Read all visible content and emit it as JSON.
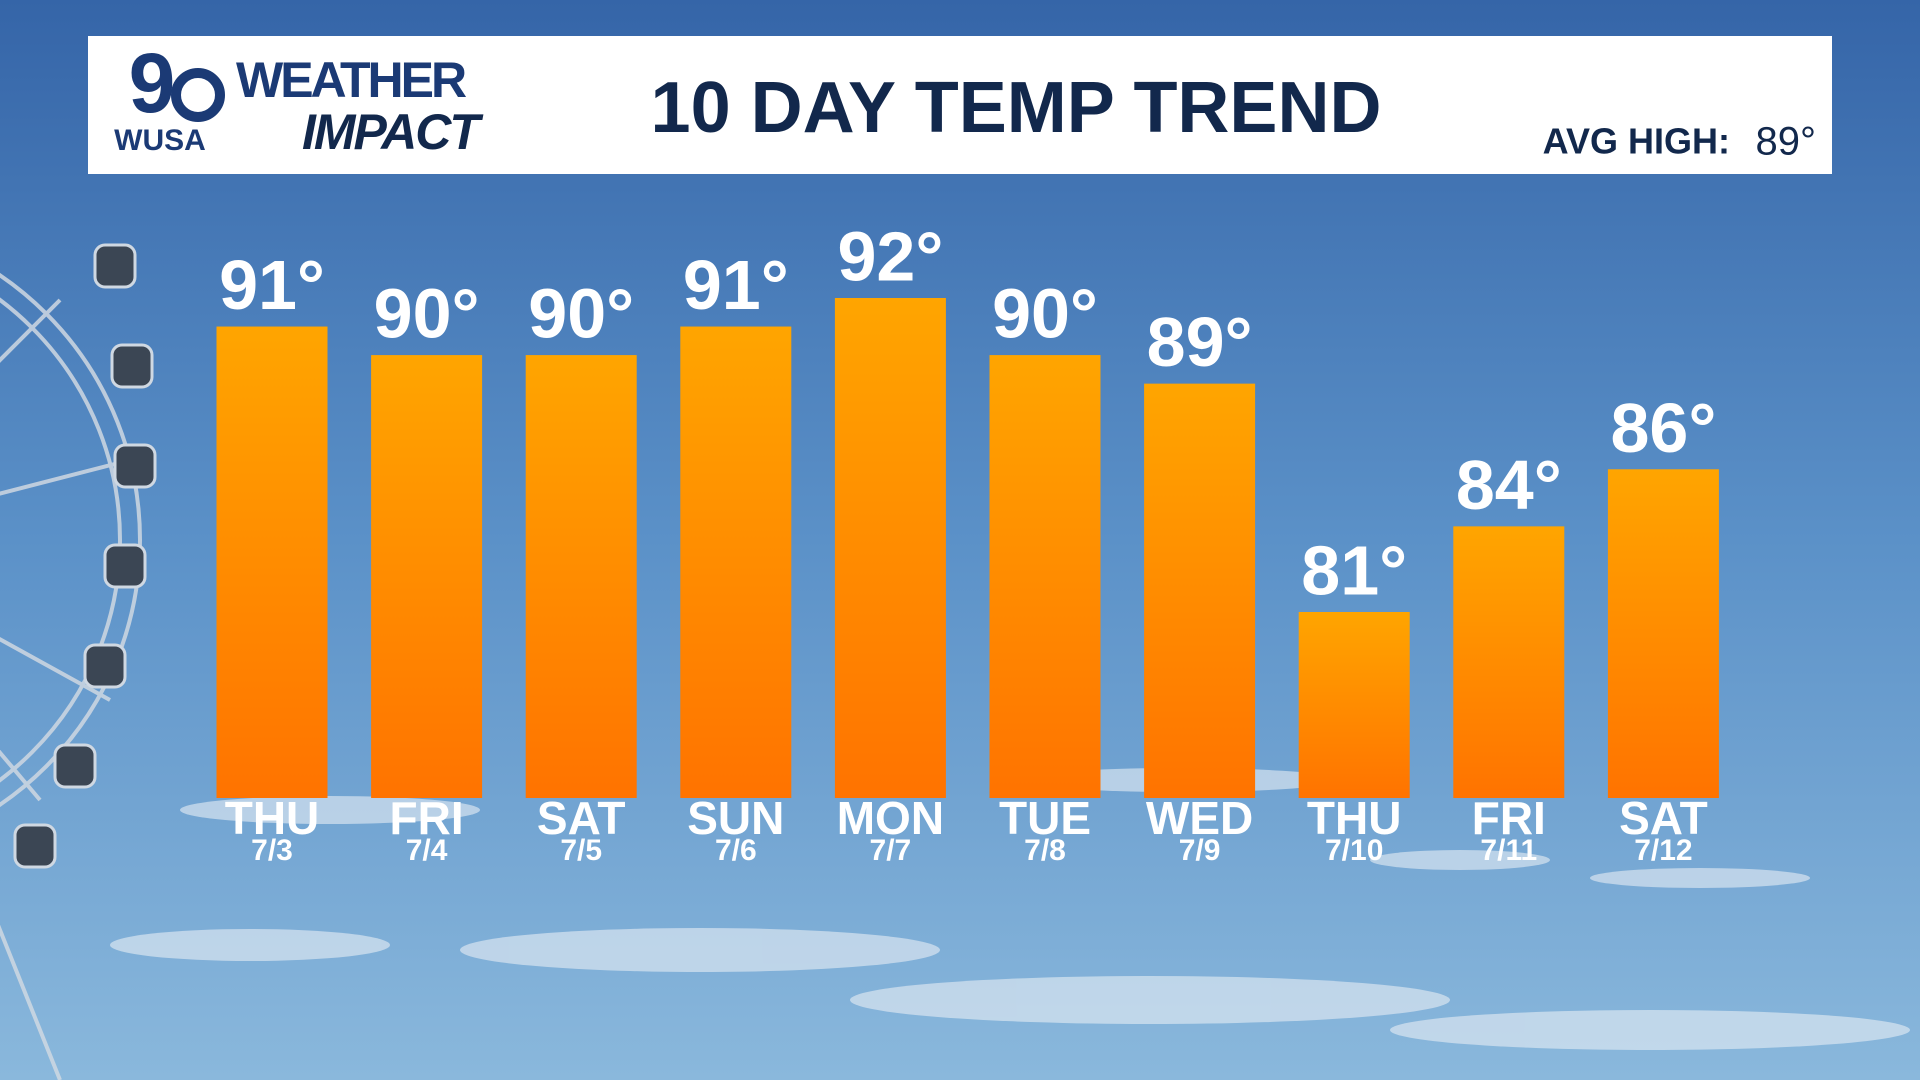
{
  "header": {
    "logo_number": "9",
    "logo_station": "WUSA",
    "brand_top": "WEATHER",
    "brand_bottom": "IMPACT",
    "avg_high_label": "AVG HIGH:",
    "avg_high_value": "89°"
  },
  "chart_data": {
    "type": "bar",
    "title": "10 DAY TEMP TREND",
    "categories": [
      "THU",
      "FRI",
      "SAT",
      "SUN",
      "MON",
      "TUE",
      "WED",
      "THU",
      "FRI",
      "SAT"
    ],
    "dates": [
      "7/3",
      "7/4",
      "7/5",
      "7/6",
      "7/7",
      "7/8",
      "7/9",
      "7/10",
      "7/11",
      "7/12"
    ],
    "values": [
      91,
      90,
      90,
      91,
      92,
      90,
      89,
      81,
      84,
      86
    ],
    "value_labels": [
      "91°",
      "90°",
      "90°",
      "91°",
      "92°",
      "90°",
      "89°",
      "81°",
      "84°",
      "86°"
    ]
  }
}
